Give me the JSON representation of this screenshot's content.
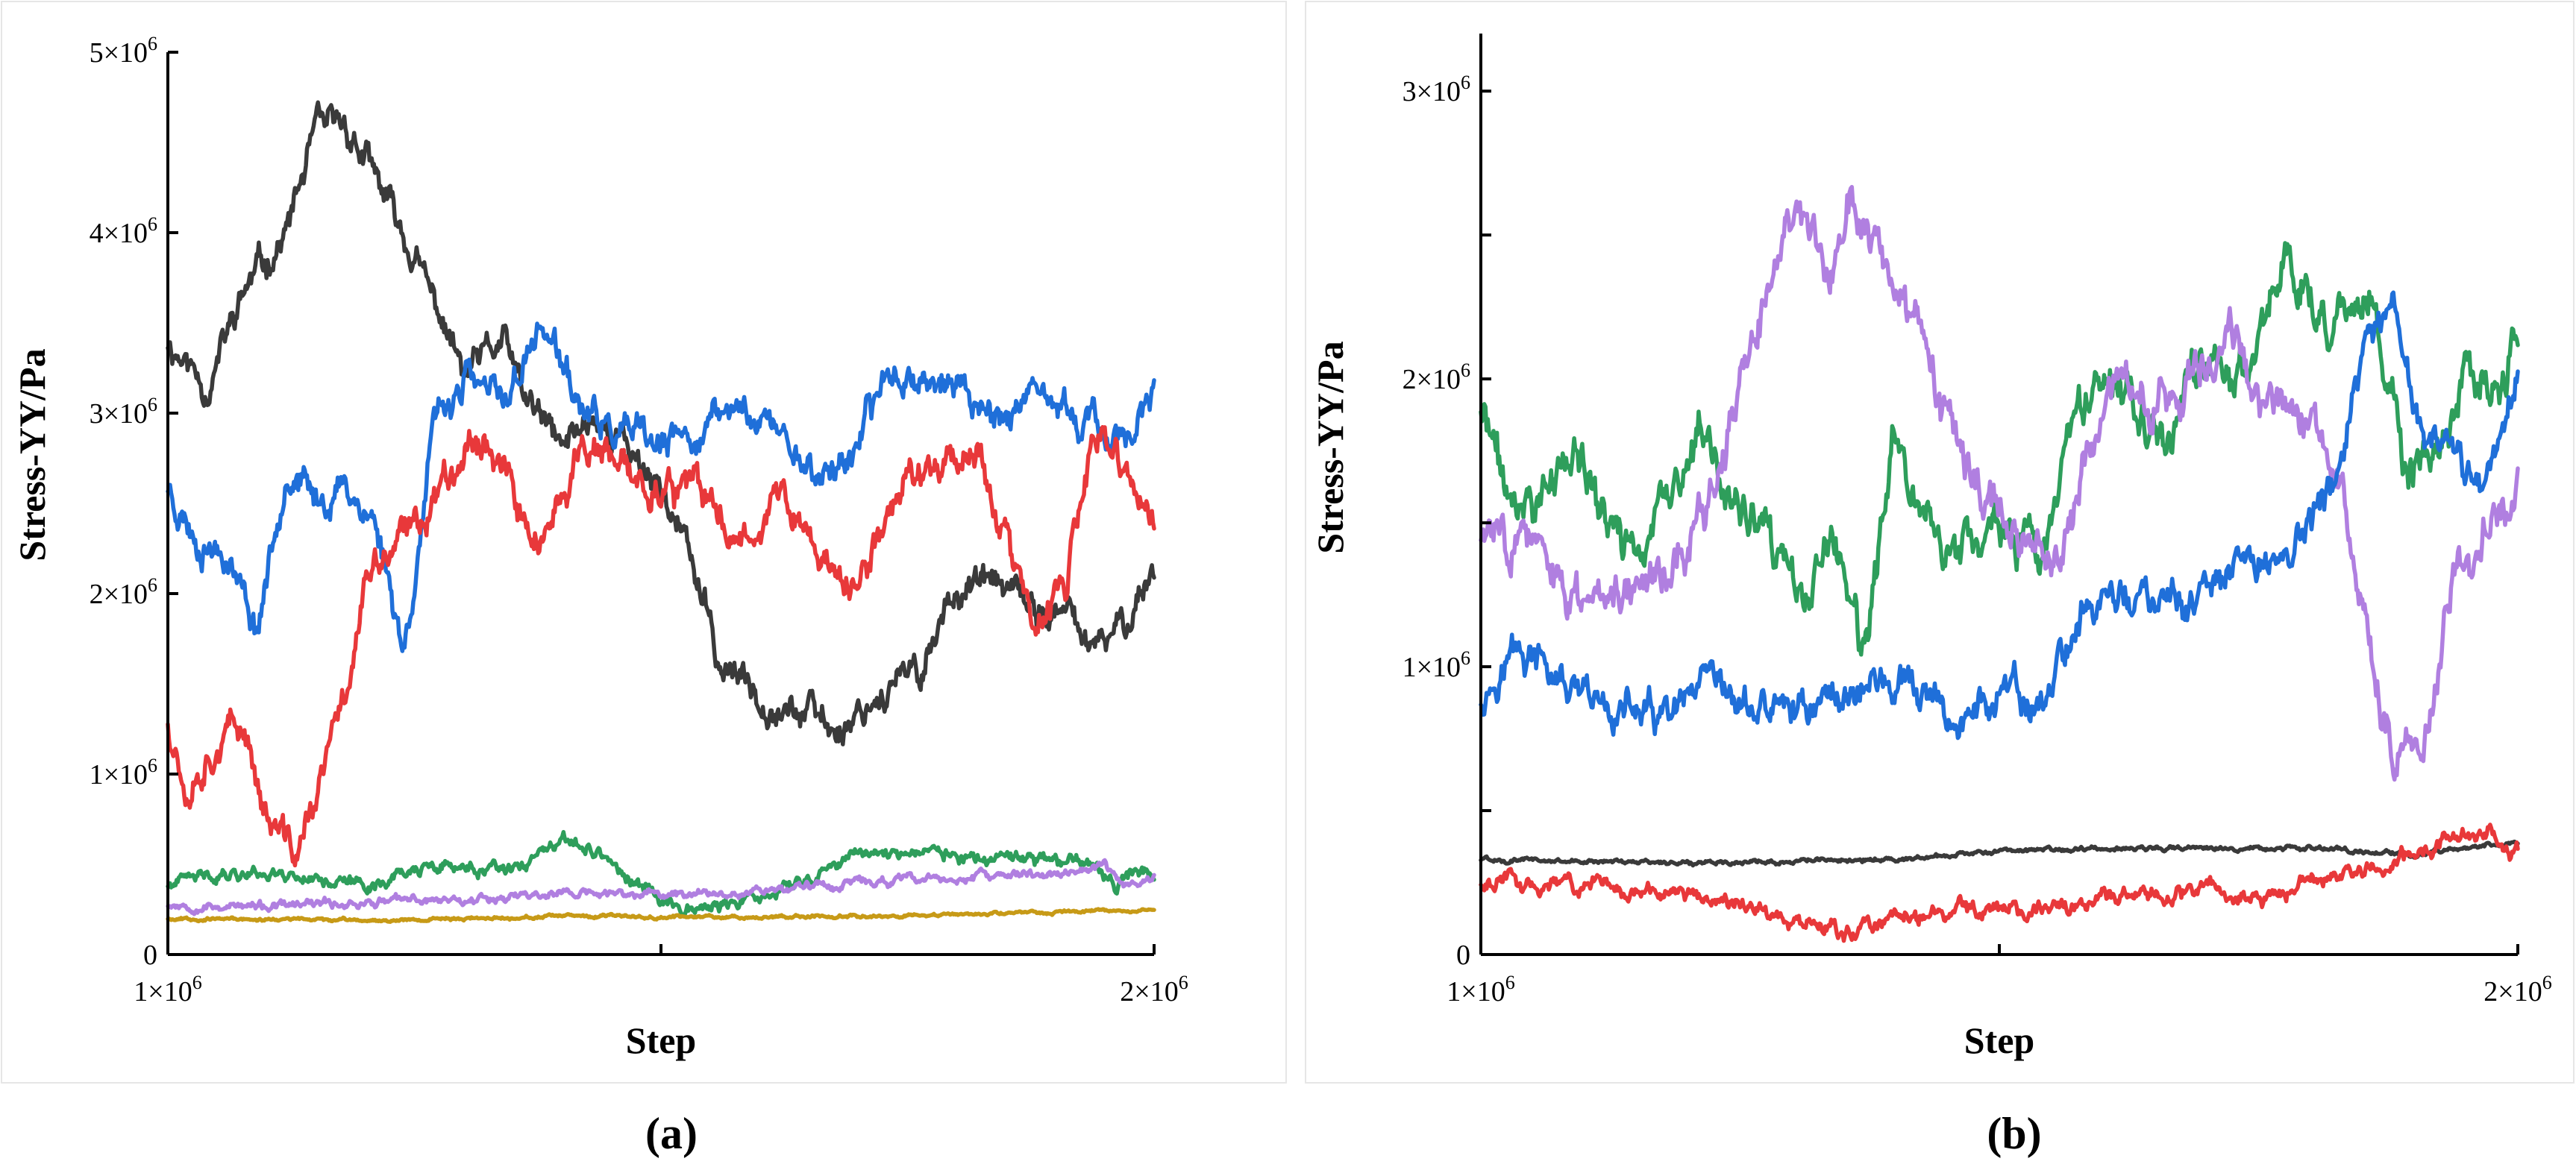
{
  "chart_data": [
    {
      "panel": "(a)",
      "type": "line",
      "xlabel": "Step",
      "ylabel": "Stress-YY/Pa",
      "xlim": [
        1000000,
        2000000
      ],
      "ylim": [
        0,
        5000000
      ],
      "xtick_labels": [
        {
          "value": 1000000,
          "label": "1×10",
          "exp": "6"
        },
        {
          "value": 1500000,
          "label": "",
          "exp": ""
        },
        {
          "value": 2000000,
          "label": "2×10",
          "exp": "6"
        }
      ],
      "ytick_labels": [
        {
          "value": 0,
          "label": "0",
          "exp": ""
        },
        {
          "value": 1000000,
          "label": "1×10",
          "exp": "6"
        },
        {
          "value": 2000000,
          "label": "2×10",
          "exp": "6"
        },
        {
          "value": 3000000,
          "label": "3×10",
          "exp": "6"
        },
        {
          "value": 4000000,
          "label": "4×10",
          "exp": "6"
        },
        {
          "value": 5000000,
          "label": "5×10",
          "exp": "6"
        }
      ],
      "series": [
        {
          "name": "black",
          "color": "#3a3a3a",
          "seed": 11,
          "noise": 55000,
          "x": [
            1.0,
            1.04,
            1.08,
            1.12,
            1.15,
            1.18,
            1.22,
            1.25,
            1.28,
            1.3,
            1.34,
            1.36,
            1.4,
            1.43,
            1.46,
            1.5,
            1.53,
            1.56,
            1.6,
            1.64,
            1.68,
            1.72,
            1.76,
            1.8,
            1.84,
            1.88,
            1.92,
            1.94,
            1.97,
            2.0
          ],
          "y": [
            3400000,
            3150000,
            3700000,
            4000000,
            4550000,
            4600000,
            4200000,
            3850000,
            3500000,
            3200000,
            3400000,
            3100000,
            2800000,
            3000000,
            2850000,
            2600000,
            2200000,
            1600000,
            1450000,
            1350000,
            1250000,
            1450000,
            1550000,
            2050000,
            2050000,
            1900000,
            1850000,
            1650000,
            1850000,
            2150000
          ]
        },
        {
          "name": "blue",
          "color": "#1f6fd9",
          "seed": 23,
          "noise": 55000,
          "x": [
            1.0,
            1.03,
            1.06,
            1.09,
            1.12,
            1.15,
            1.18,
            1.21,
            1.24,
            1.27,
            1.3,
            1.34,
            1.38,
            1.42,
            1.45,
            1.5,
            1.54,
            1.58,
            1.62,
            1.66,
            1.7,
            1.73,
            1.76,
            1.8,
            1.84,
            1.88,
            1.92,
            1.96,
            2.0
          ],
          "y": [
            2600000,
            2300000,
            2250000,
            1800000,
            2700000,
            2500000,
            2600000,
            2400000,
            1700000,
            2900000,
            3200000,
            3050000,
            3500000,
            3000000,
            2900000,
            2800000,
            2900000,
            3050000,
            2900000,
            2650000,
            2800000,
            3250000,
            3200000,
            3150000,
            3000000,
            3050000,
            3000000,
            2850000,
            3050000
          ]
        },
        {
          "name": "red",
          "color": "#e8383a",
          "seed": 37,
          "noise": 60000,
          "x": [
            1.0,
            1.02,
            1.05,
            1.08,
            1.1,
            1.13,
            1.15,
            1.18,
            1.2,
            1.22,
            1.25,
            1.28,
            1.31,
            1.34,
            1.36,
            1.39,
            1.42,
            1.46,
            1.5,
            1.54,
            1.58,
            1.62,
            1.66,
            1.7,
            1.74,
            1.78,
            1.82,
            1.85,
            1.88,
            1.91,
            1.94,
            1.97,
            2.0
          ],
          "y": [
            1300000,
            950000,
            1200000,
            1250000,
            750000,
            550000,
            850000,
            1450000,
            2050000,
            2200000,
            2350000,
            2650000,
            2900000,
            2750000,
            2350000,
            2300000,
            2850000,
            2650000,
            2600000,
            2550000,
            2300000,
            2550000,
            2200000,
            2000000,
            2600000,
            2750000,
            2800000,
            2300000,
            1750000,
            2050000,
            2850000,
            2700000,
            2350000
          ]
        },
        {
          "name": "green",
          "color": "#2e9e5b",
          "seed": 41,
          "noise": 22000,
          "x": [
            1.0,
            1.05,
            1.1,
            1.15,
            1.2,
            1.25,
            1.3,
            1.35,
            1.38,
            1.41,
            1.44,
            1.47,
            1.5,
            1.54,
            1.58,
            1.62,
            1.66,
            1.7,
            1.75,
            1.8,
            1.85,
            1.9,
            1.94,
            1.96,
            1.98,
            2.0
          ],
          "y": [
            380000,
            450000,
            460000,
            430000,
            380000,
            470000,
            480000,
            450000,
            560000,
            620000,
            560000,
            400000,
            300000,
            260000,
            280000,
            350000,
            450000,
            560000,
            580000,
            550000,
            500000,
            530000,
            480000,
            360000,
            460000,
            460000
          ]
        },
        {
          "name": "purple",
          "color": "#b07fe0",
          "seed": 53,
          "noise": 15000,
          "x": [
            1.0,
            1.1,
            1.2,
            1.3,
            1.4,
            1.5,
            1.6,
            1.7,
            1.8,
            1.9,
            1.95,
            1.97,
            2.0
          ],
          "y": [
            280000,
            260000,
            290000,
            310000,
            340000,
            330000,
            360000,
            400000,
            420000,
            450000,
            480000,
            390000,
            420000
          ]
        },
        {
          "name": "gold",
          "color": "#c79a17",
          "seed": 67,
          "noise": 5000,
          "x": [
            1.0,
            1.2,
            1.4,
            1.6,
            1.8,
            2.0
          ],
          "y": [
            200000,
            190000,
            210000,
            210000,
            220000,
            250000
          ]
        }
      ]
    },
    {
      "panel": "(b)",
      "type": "line",
      "xlabel": "Step",
      "ylabel": "Stress-YY/Pa",
      "xlim": [
        1000000,
        2000000
      ],
      "ylim": [
        0,
        3200000
      ],
      "xtick_labels": [
        {
          "value": 1000000,
          "label": "1×10",
          "exp": "6"
        },
        {
          "value": 1500000,
          "label": "",
          "exp": ""
        },
        {
          "value": 2000000,
          "label": "2×10",
          "exp": "6"
        }
      ],
      "ytick_labels": [
        {
          "value": 0,
          "label": "0",
          "exp": ""
        },
        {
          "value": 500000,
          "label": "",
          "exp": ""
        },
        {
          "value": 1000000,
          "label": "1×10",
          "exp": "6"
        },
        {
          "value": 1500000,
          "label": "",
          "exp": ""
        },
        {
          "value": 2000000,
          "label": "2×10",
          "exp": "6"
        },
        {
          "value": 2500000,
          "label": "",
          "exp": ""
        },
        {
          "value": 3000000,
          "label": "3×10",
          "exp": "6"
        }
      ],
      "series": [
        {
          "name": "green",
          "color": "#2e9e5b",
          "seed": 71,
          "noise": 50000,
          "x": [
            1.0,
            1.03,
            1.06,
            1.09,
            1.12,
            1.15,
            1.18,
            1.21,
            1.24,
            1.28,
            1.31,
            1.34,
            1.37,
            1.4,
            1.43,
            1.46,
            1.5,
            1.54,
            1.58,
            1.62,
            1.66,
            1.7,
            1.74,
            1.78,
            1.82,
            1.86,
            1.89,
            1.92,
            1.95,
            1.98,
            2.0
          ],
          "y": [
            1900000,
            1550000,
            1600000,
            1750000,
            1500000,
            1400000,
            1550000,
            1800000,
            1600000,
            1400000,
            1200000,
            1450000,
            1000000,
            1800000,
            1500000,
            1400000,
            1500000,
            1350000,
            1900000,
            2000000,
            1800000,
            2100000,
            2000000,
            2450000,
            2200000,
            2300000,
            1650000,
            1700000,
            2000000,
            1900000,
            2150000
          ]
        },
        {
          "name": "purple",
          "color": "#b07fe0",
          "seed": 83,
          "noise": 50000,
          "x": [
            1.0,
            1.04,
            1.08,
            1.12,
            1.16,
            1.2,
            1.24,
            1.27,
            1.3,
            1.33,
            1.36,
            1.4,
            1.44,
            1.48,
            1.52,
            1.56,
            1.6,
            1.64,
            1.68,
            1.72,
            1.76,
            1.8,
            1.83,
            1.86,
            1.88,
            1.91,
            1.94,
            1.97,
            2.0
          ],
          "y": [
            1450000,
            1500000,
            1200000,
            1300000,
            1300000,
            1400000,
            1800000,
            2200000,
            2650000,
            2300000,
            2650000,
            2350000,
            1900000,
            1600000,
            1450000,
            1400000,
            1900000,
            1950000,
            2000000,
            2200000,
            1900000,
            1850000,
            1700000,
            1050000,
            700000,
            750000,
            1300000,
            1500000,
            1600000
          ]
        },
        {
          "name": "blue",
          "color": "#1f6fd9",
          "seed": 97,
          "noise": 40000,
          "x": [
            1.0,
            1.03,
            1.06,
            1.1,
            1.14,
            1.18,
            1.22,
            1.26,
            1.3,
            1.34,
            1.38,
            1.42,
            1.46,
            1.5,
            1.54,
            1.58,
            1.62,
            1.66,
            1.7,
            1.74,
            1.78,
            1.82,
            1.85,
            1.88,
            1.91,
            1.94,
            1.97,
            2.0
          ],
          "y": [
            900000,
            1050000,
            1000000,
            850000,
            850000,
            800000,
            900000,
            850000,
            850000,
            900000,
            950000,
            900000,
            800000,
            900000,
            850000,
            1200000,
            1250000,
            1200000,
            1250000,
            1350000,
            1400000,
            1600000,
            2050000,
            2200000,
            1800000,
            1700000,
            1650000,
            2050000
          ]
        },
        {
          "name": "black",
          "color": "#3a3a3a",
          "seed": 101,
          "noise": 5000,
          "x": [
            1.0,
            1.2,
            1.4,
            1.5,
            1.6,
            1.8,
            1.9,
            2.0
          ],
          "y": [
            330000,
            320000,
            330000,
            360000,
            370000,
            370000,
            350000,
            390000
          ]
        },
        {
          "name": "red",
          "color": "#e8383a",
          "seed": 113,
          "noise": 18000,
          "x": [
            1.0,
            1.1,
            1.2,
            1.25,
            1.3,
            1.35,
            1.38,
            1.45,
            1.55,
            1.62,
            1.7,
            1.75,
            1.8,
            1.85,
            1.9,
            1.93,
            1.96,
            2.0
          ],
          "y": [
            250000,
            250000,
            200000,
            180000,
            120000,
            80000,
            100000,
            150000,
            160000,
            200000,
            220000,
            200000,
            250000,
            300000,
            350000,
            400000,
            420000,
            380000
          ]
        }
      ]
    }
  ],
  "captions": {
    "a": "(a)",
    "b": "(b)"
  }
}
